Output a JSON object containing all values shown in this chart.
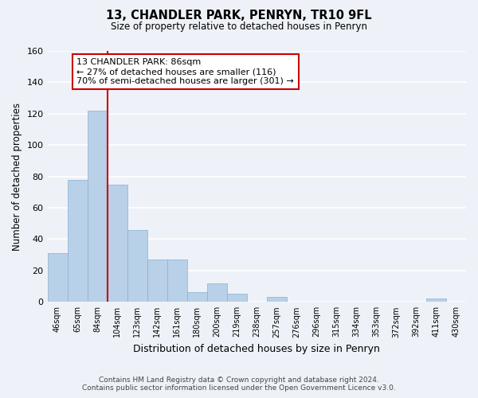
{
  "title": "13, CHANDLER PARK, PENRYN, TR10 9FL",
  "subtitle": "Size of property relative to detached houses in Penryn",
  "xlabel": "Distribution of detached houses by size in Penryn",
  "ylabel": "Number of detached properties",
  "footer_line1": "Contains HM Land Registry data © Crown copyright and database right 2024.",
  "footer_line2": "Contains public sector information licensed under the Open Government Licence v3.0.",
  "bin_labels": [
    "46sqm",
    "65sqm",
    "84sqm",
    "104sqm",
    "123sqm",
    "142sqm",
    "161sqm",
    "180sqm",
    "200sqm",
    "219sqm",
    "238sqm",
    "257sqm",
    "276sqm",
    "296sqm",
    "315sqm",
    "334sqm",
    "353sqm",
    "372sqm",
    "392sqm",
    "411sqm",
    "430sqm"
  ],
  "bar_values": [
    31,
    78,
    122,
    75,
    46,
    27,
    27,
    6,
    12,
    5,
    0,
    3,
    0,
    0,
    0,
    0,
    0,
    0,
    0,
    2,
    0
  ],
  "bar_color": "#b8d0e8",
  "bar_edge_color": "#8ab0d0",
  "ylim": [
    0,
    160
  ],
  "yticks": [
    0,
    20,
    40,
    60,
    80,
    100,
    120,
    140,
    160
  ],
  "property_line_bin_index": 2,
  "annotation_title": "13 CHANDLER PARK: 86sqm",
  "annotation_line2": "← 27% of detached houses are smaller (116)",
  "annotation_line3": "70% of semi-detached houses are larger (301) →",
  "red_line_color": "#cc0000",
  "background_color": "#eef2f8",
  "grid_color": "#ffffff",
  "annotation_border_color": "#cc0000",
  "annotation_bg": "#ffffff"
}
